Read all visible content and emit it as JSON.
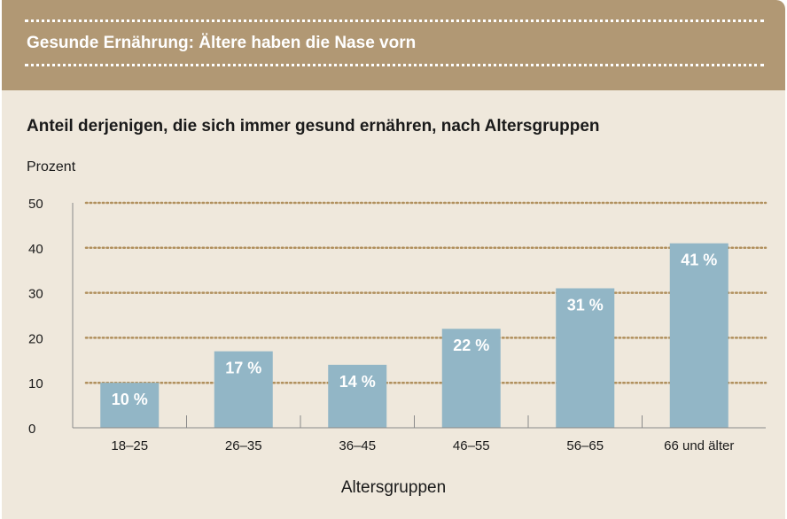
{
  "header": {
    "title": "Gesunde Ernährung: Ältere haben die Nase vorn"
  },
  "colors": {
    "banner": "#b19874",
    "background": "#efe8dc",
    "bar": "#92b6c6",
    "gridline": "#b08f5c",
    "bar_label": "#ffffff"
  },
  "chart_data": {
    "type": "bar",
    "title": "Anteil derjenigen, die sich immer gesund ernähren, nach Altersgruppen",
    "ylabel": "Prozent",
    "xlabel": "Altersgruppen",
    "categories": [
      "18–25",
      "26–35",
      "36–45",
      "46–55",
      "56–65",
      "66 und älter"
    ],
    "values": [
      10,
      17,
      14,
      22,
      31,
      41
    ],
    "value_labels": [
      "10 %",
      "17 %",
      "14 %",
      "22 %",
      "31 %",
      "41 %"
    ],
    "ylim": [
      0,
      50
    ],
    "yticks": [
      0,
      10,
      20,
      30,
      40,
      50
    ],
    "grid": true
  }
}
